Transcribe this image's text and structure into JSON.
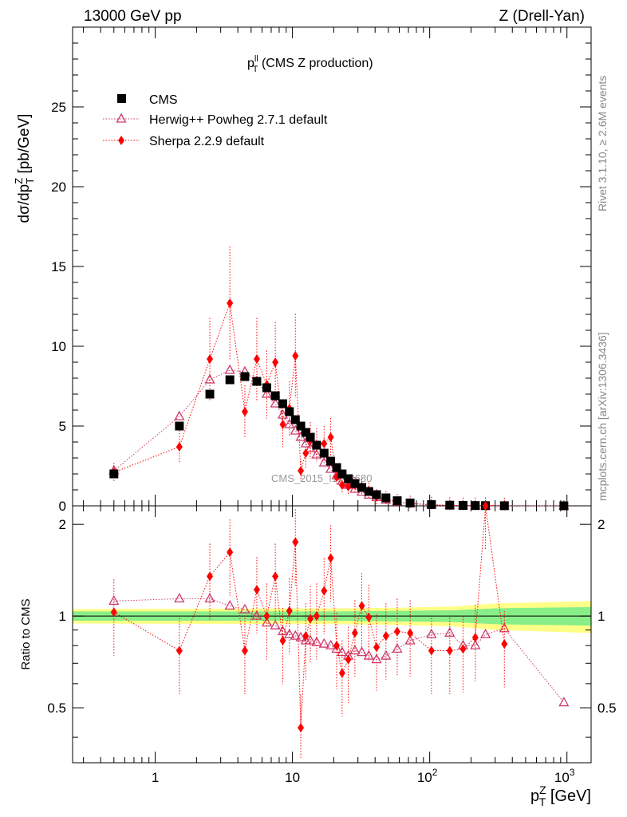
{
  "header": {
    "left": "13000 GeV pp",
    "right": "Z (Drell-Yan)"
  },
  "side_labels": {
    "rivet": "Rivet 3.1.10, ≥ 2.6M events",
    "mcplots": "mcplots.cern.ch [arXiv:1306.3436]"
  },
  "watermark": "CMS_2015_I1753680",
  "chart_data": [
    {
      "type": "scatter",
      "panel": "main",
      "title_main": "p",
      "title_sup": "ll",
      "title_sub": "T",
      "title_rest": " (CMS Z production)",
      "ylabel": "dσ/dp",
      "ylabel_sup": "Z",
      "ylabel_sub": "T",
      "ylabel_unit": " [pb/GeV]",
      "x_scale": "log",
      "xlim": [
        0.25,
        1500
      ],
      "ylim": [
        0,
        30
      ],
      "y_ticks": [
        "0",
        "5",
        "10",
        "15",
        "20",
        "25"
      ],
      "legend_position": "top-left",
      "series": [
        {
          "name": "CMS",
          "color": "#000000",
          "marker": "square",
          "x": [
            0.5,
            1.5,
            2.5,
            3.5,
            4.5,
            5.5,
            6.5,
            7.5,
            8.5,
            9.5,
            10.5,
            11.5,
            12.5,
            13.5,
            15,
            17,
            19,
            21,
            23,
            25.5,
            28.5,
            32,
            36,
            41,
            48,
            58,
            72,
            103,
            140,
            175,
            215,
            255,
            350,
            950
          ],
          "y": [
            2.0,
            5.0,
            7.0,
            7.9,
            8.1,
            7.8,
            7.4,
            6.9,
            6.4,
            5.9,
            5.4,
            5.0,
            4.6,
            4.3,
            3.8,
            3.3,
            2.8,
            2.4,
            2.0,
            1.7,
            1.4,
            1.15,
            0.9,
            0.7,
            0.5,
            0.32,
            0.18,
            0.08,
            0.04,
            0.025,
            0.018,
            0.012,
            0.006,
            0.001
          ]
        },
        {
          "name": "Herwig++ Powheg 2.7.1 default",
          "color": "#cc3d6e",
          "marker": "triangle-open",
          "x": [
            0.5,
            1.5,
            2.5,
            3.5,
            4.5,
            5.5,
            6.5,
            7.5,
            8.5,
            9.5,
            10.5,
            11.5,
            12.5,
            13.5,
            15,
            17,
            19,
            21,
            23,
            25.5,
            28.5,
            32,
            36,
            41,
            48,
            58,
            72,
            103,
            140,
            175,
            215,
            255,
            350,
            950
          ],
          "y": [
            2.2,
            5.6,
            7.9,
            8.5,
            8.4,
            7.8,
            7.0,
            6.4,
            5.7,
            5.1,
            4.7,
            4.3,
            3.9,
            3.6,
            3.2,
            2.7,
            2.3,
            1.9,
            1.55,
            1.3,
            1.05,
            0.87,
            0.68,
            0.53,
            0.37,
            0.25,
            0.15,
            0.07,
            0.035,
            0.02,
            0.015,
            0.01,
            0.005,
            0.0005
          ]
        },
        {
          "name": "Sherpa 2.2.9 default",
          "color": "#ff0000",
          "marker": "diamond",
          "x": [
            0.5,
            1.5,
            2.5,
            3.5,
            4.5,
            5.5,
            6.5,
            7.5,
            8.5,
            9.5,
            10.5,
            11.5,
            12.5,
            13.5,
            15,
            17,
            19,
            21,
            23,
            25.5,
            28.5,
            32,
            36,
            41,
            48,
            58,
            72,
            103,
            140,
            175,
            215,
            255,
            350
          ],
          "y": [
            2.1,
            3.7,
            9.2,
            12.7,
            5.9,
            9.2,
            7.6,
            9.0,
            5.1,
            6.1,
            9.4,
            2.2,
            3.3,
            4.1,
            3.8,
            3.9,
            4.3,
            1.8,
            1.3,
            1.2,
            1.3,
            1.2,
            0.95,
            0.55,
            0.42,
            0.25,
            0.14,
            0.06,
            0.03,
            0.02,
            0.015,
            0.025,
            0.004
          ]
        }
      ]
    },
    {
      "type": "scatter",
      "panel": "ratio",
      "ylabel": "Ratio to CMS",
      "xlabel": "p",
      "xlabel_sup": "Z",
      "xlabel_sub": "T",
      "xlabel_unit": " [GeV]",
      "x_scale": "log",
      "xlim": [
        0.25,
        1500
      ],
      "ylim": [
        0.33,
        2.3
      ],
      "y_ticks": [
        "0.5",
        "1",
        "2"
      ],
      "x_ticks_major": [
        {
          "base": "1",
          "exp": ""
        },
        {
          "base": "10",
          "exp": ""
        },
        {
          "base": "10",
          "exp": "2"
        },
        {
          "base": "10",
          "exp": "3"
        }
      ],
      "bands": {
        "inner_color": "#88ee88",
        "outer_color": "#ffff88"
      },
      "series": [
        {
          "name": "Herwig++ Powheg 2.7.1 default",
          "x": [
            0.5,
            1.5,
            2.5,
            3.5,
            4.5,
            5.5,
            6.5,
            7.5,
            8.5,
            9.5,
            10.5,
            11.5,
            12.5,
            13.5,
            15,
            17,
            19,
            21,
            23,
            25.5,
            28.5,
            32,
            36,
            41,
            48,
            58,
            72,
            103,
            140,
            175,
            215,
            255,
            350,
            950
          ],
          "y": [
            1.12,
            1.14,
            1.14,
            1.08,
            1.05,
            1.0,
            0.95,
            0.93,
            0.89,
            0.87,
            0.86,
            0.85,
            0.83,
            0.83,
            0.82,
            0.81,
            0.8,
            0.78,
            0.76,
            0.74,
            0.77,
            0.76,
            0.74,
            0.72,
            0.74,
            0.78,
            0.83,
            0.87,
            0.88,
            0.8,
            0.8,
            0.87,
            0.91,
            0.52
          ]
        },
        {
          "name": "Sherpa 2.2.9 default",
          "x": [
            0.5,
            1.5,
            2.5,
            3.5,
            4.5,
            5.5,
            6.5,
            7.5,
            8.5,
            9.5,
            10.5,
            11.5,
            12.5,
            13.5,
            15,
            17,
            19,
            21,
            23,
            25.5,
            28.5,
            32,
            36,
            41,
            48,
            58,
            72,
            103,
            140,
            175,
            215,
            255,
            350
          ],
          "y": [
            1.03,
            0.77,
            1.35,
            1.62,
            0.77,
            1.22,
            1.0,
            1.35,
            0.83,
            1.04,
            1.75,
            0.43,
            0.86,
            0.98,
            1.0,
            1.21,
            1.55,
            0.8,
            0.65,
            0.72,
            0.88,
            1.08,
            0.99,
            0.79,
            0.86,
            0.89,
            0.88,
            0.77,
            0.77,
            0.78,
            0.85,
            2.3,
            0.81
          ]
        }
      ]
    }
  ]
}
